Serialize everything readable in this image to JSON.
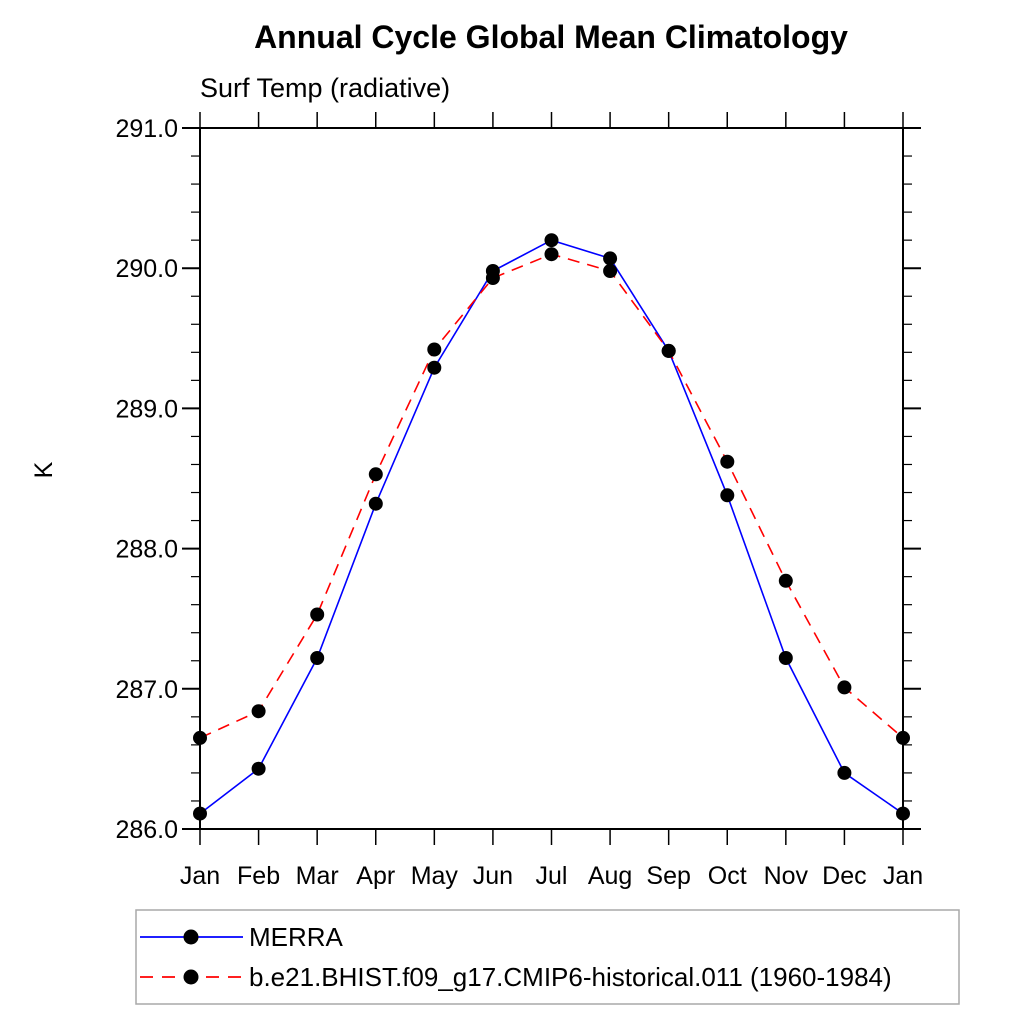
{
  "figure": {
    "background_color": "#ffffff",
    "axis_color": "#000000",
    "legend_border_color": "#a9a9a9",
    "marker_shape": "filled-circle"
  },
  "chart_data": {
    "type": "line",
    "title": "Annual Cycle Global Mean Climatology",
    "subtitle": "Surf Temp (radiative)",
    "ylabel": "K",
    "xlabel": "",
    "categories": [
      "Jan",
      "Feb",
      "Mar",
      "Apr",
      "May",
      "Jun",
      "Jul",
      "Aug",
      "Sep",
      "Oct",
      "Nov",
      "Dec",
      "Jan"
    ],
    "ylim": [
      286.0,
      291.0
    ],
    "ytick_interval": 1.0,
    "yminor_interval": 0.2,
    "ytick_labels": [
      "286.0",
      "287.0",
      "288.0",
      "289.0",
      "290.0",
      "291.0"
    ],
    "grid": false,
    "legend_position": "bottom-left",
    "series": [
      {
        "name": "MERRA",
        "color": "#0000ff",
        "line_style": "solid",
        "marker": "filled-circle",
        "marker_color": "#000000",
        "values": [
          286.11,
          286.43,
          287.22,
          288.32,
          289.29,
          289.98,
          290.2,
          290.07,
          289.41,
          288.38,
          287.22,
          286.4,
          286.11
        ]
      },
      {
        "name": "b.e21.BHIST.f09_g17.CMIP6-historical.011 (1960-1984)",
        "color": "#ff0000",
        "line_style": "dashed",
        "marker": "filled-circle",
        "marker_color": "#000000",
        "values": [
          286.65,
          286.84,
          287.53,
          288.53,
          289.42,
          289.93,
          290.1,
          289.98,
          289.41,
          288.62,
          287.77,
          287.01,
          286.65
        ]
      }
    ]
  }
}
